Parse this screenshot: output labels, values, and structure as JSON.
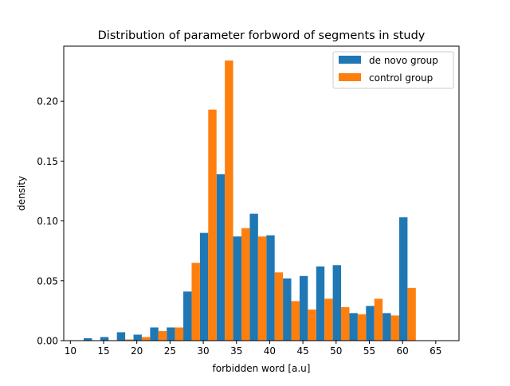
{
  "chart_data": {
    "type": "bar",
    "title": "Distribution of parameter forbword of segments in study",
    "xlabel": "forbidden word [a.u]",
    "ylabel": "density",
    "xlim": [
      9.0,
      68.5
    ],
    "ylim": [
      0,
      0.246
    ],
    "xticks": [
      10,
      15,
      20,
      25,
      30,
      35,
      40,
      45,
      50,
      55,
      60,
      65
    ],
    "yticks": [
      0.0,
      0.05,
      0.1,
      0.15,
      0.2
    ],
    "ytick_labels": [
      "0.00",
      "0.05",
      "0.10",
      "0.15",
      "0.20"
    ],
    "bin_edges": [
      12.0,
      14.5,
      17.0,
      19.5,
      22.0,
      24.5,
      27.0,
      29.5,
      32.0,
      34.5,
      37.0,
      39.5,
      42.0,
      44.5,
      47.0,
      49.5,
      52.0,
      54.5,
      57.0,
      59.5,
      62.0
    ],
    "series": [
      {
        "name": "de novo group",
        "color": "#1f77b4",
        "values": [
          0.002,
          0.003,
          0.007,
          0.005,
          0.011,
          0.011,
          0.041,
          0.09,
          0.139,
          0.087,
          0.106,
          0.088,
          0.052,
          0.054,
          0.062,
          0.063,
          0.023,
          0.029,
          0.023,
          0.103
        ]
      },
      {
        "name": "control group",
        "color": "#ff7f0e",
        "values": [
          0.0,
          0.0,
          0.001,
          0.003,
          0.008,
          0.011,
          0.065,
          0.193,
          0.234,
          0.094,
          0.087,
          0.057,
          0.033,
          0.026,
          0.035,
          0.028,
          0.022,
          0.035,
          0.021,
          0.044
        ]
      }
    ],
    "legend_position": "top-right",
    "grid": false
  }
}
